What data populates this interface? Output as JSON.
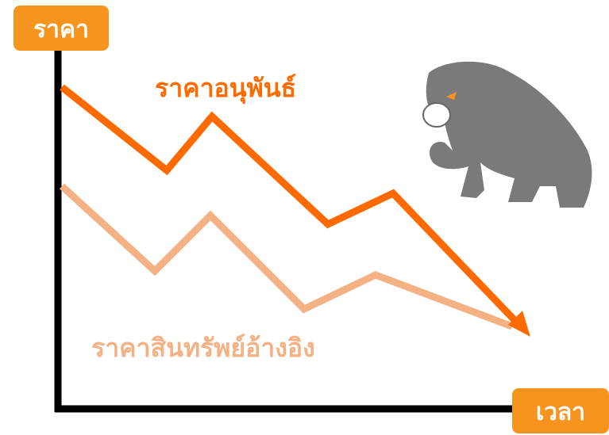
{
  "y_axis_label": "ราคา",
  "x_axis_label": "เวลา",
  "lines": [
    {
      "label": "ราคาอนุพันธ์"
    },
    {
      "label": "ราคาสินทรัพย์อ้างอิง"
    }
  ]
}
